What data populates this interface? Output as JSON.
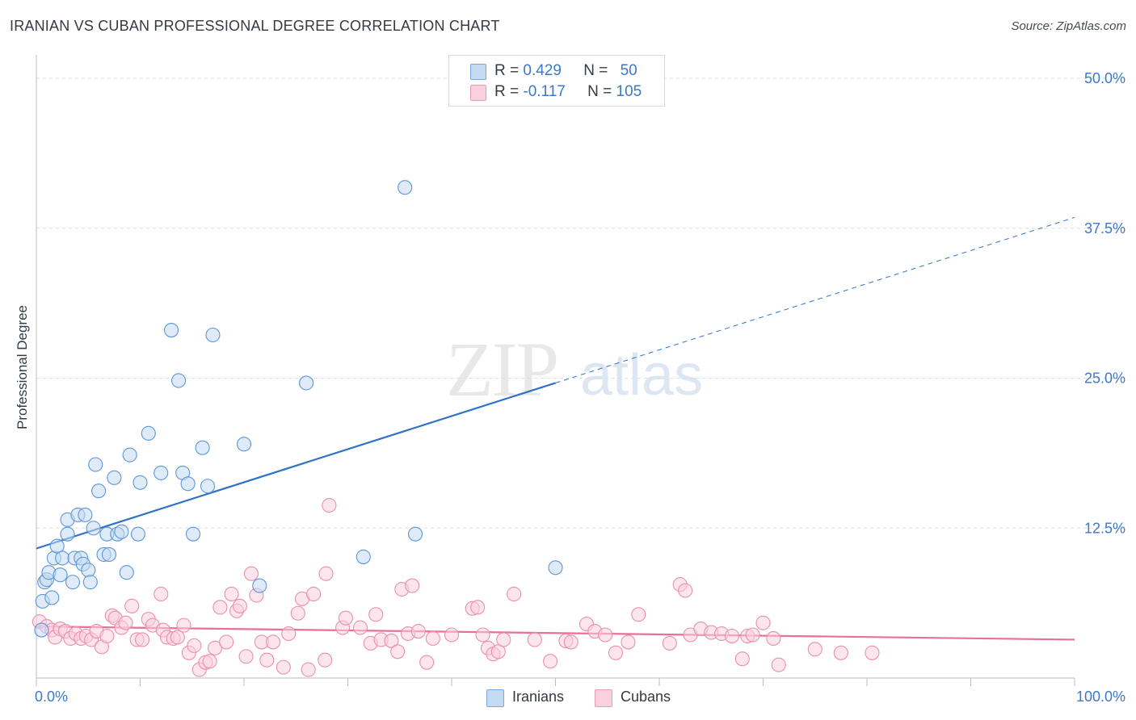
{
  "header": {
    "title": "IRANIAN VS CUBAN PROFESSIONAL DEGREE CORRELATION CHART",
    "source": "Source: ZipAtlas.com"
  },
  "watermark": {
    "zip": "ZIP",
    "atlas": "atlas"
  },
  "legend": {
    "r_label": "R = ",
    "n_label": "N = ",
    "iranians": {
      "name": "Iranians",
      "r": "0.429",
      "n": "50",
      "color": "#5b9bd5"
    },
    "cubans": {
      "name": "Cubans",
      "r": "-0.117",
      "n": "105",
      "color": "#e985a8"
    }
  },
  "chart_data": {
    "type": "scatter",
    "title": "IRANIAN VS CUBAN PROFESSIONAL DEGREE CORRELATION CHART",
    "xlabel": "",
    "ylabel": "Professional Degree",
    "xlim": [
      0,
      100
    ],
    "ylim": [
      0,
      52
    ],
    "x_tick_labels": [
      "0.0%",
      "100.0%"
    ],
    "y_ticks": [
      12.5,
      25.0,
      37.5,
      50.0
    ],
    "y_tick_labels": [
      "12.5%",
      "25.0%",
      "37.5%",
      "50.0%"
    ],
    "grid": true,
    "series": [
      {
        "name": "Iranians",
        "color": "#5b9bd5",
        "trend": {
          "x_start": 0,
          "y_start": 10.8,
          "x_solid_end": 50,
          "x_end": 100,
          "slope": 0.276
        },
        "points": [
          [
            0.5,
            4.0
          ],
          [
            0.6,
            6.4
          ],
          [
            0.8,
            8.0
          ],
          [
            1.0,
            8.2
          ],
          [
            1.2,
            8.8
          ],
          [
            1.5,
            6.7
          ],
          [
            1.7,
            10.0
          ],
          [
            2.0,
            11.0
          ],
          [
            2.3,
            8.6
          ],
          [
            2.5,
            10.0
          ],
          [
            3.0,
            12.0
          ],
          [
            3.0,
            13.2
          ],
          [
            3.5,
            8.0
          ],
          [
            3.7,
            10.0
          ],
          [
            4.0,
            13.6
          ],
          [
            4.3,
            10.0
          ],
          [
            4.5,
            9.5
          ],
          [
            4.7,
            13.6
          ],
          [
            5.0,
            9.0
          ],
          [
            5.2,
            8.0
          ],
          [
            5.5,
            12.5
          ],
          [
            5.7,
            17.8
          ],
          [
            6.0,
            15.6
          ],
          [
            6.5,
            10.3
          ],
          [
            6.8,
            12.0
          ],
          [
            7.0,
            10.3
          ],
          [
            7.5,
            16.7
          ],
          [
            7.8,
            12.0
          ],
          [
            8.2,
            12.2
          ],
          [
            8.7,
            8.8
          ],
          [
            9.0,
            18.6
          ],
          [
            9.8,
            12.0
          ],
          [
            10.0,
            16.3
          ],
          [
            10.8,
            20.4
          ],
          [
            12.0,
            17.1
          ],
          [
            13.0,
            29.0
          ],
          [
            13.7,
            24.8
          ],
          [
            14.1,
            17.1
          ],
          [
            14.6,
            16.2
          ],
          [
            15.1,
            12.0
          ],
          [
            16.0,
            19.2
          ],
          [
            16.5,
            16.0
          ],
          [
            17.0,
            28.6
          ],
          [
            20.0,
            19.5
          ],
          [
            21.5,
            7.7
          ],
          [
            26.0,
            24.6
          ],
          [
            31.5,
            10.1
          ],
          [
            35.5,
            40.9
          ],
          [
            36.5,
            12.0
          ],
          [
            50.0,
            9.2
          ]
        ]
      },
      {
        "name": "Cubans",
        "color": "#e985a8",
        "trend": {
          "x_start": 0,
          "y_start": 4.3,
          "x_end": 100,
          "y_end": 3.2
        },
        "points": [
          [
            0.3,
            4.7
          ],
          [
            1.0,
            4.3
          ],
          [
            1.5,
            4.0
          ],
          [
            1.8,
            3.4
          ],
          [
            2.3,
            4.1
          ],
          [
            2.8,
            3.9
          ],
          [
            3.3,
            3.3
          ],
          [
            3.8,
            3.7
          ],
          [
            4.3,
            3.3
          ],
          [
            4.8,
            3.5
          ],
          [
            5.3,
            3.2
          ],
          [
            5.8,
            3.9
          ],
          [
            6.3,
            2.6
          ],
          [
            6.8,
            3.5
          ],
          [
            7.3,
            5.2
          ],
          [
            7.6,
            5.0
          ],
          [
            8.2,
            4.2
          ],
          [
            8.6,
            4.6
          ],
          [
            9.2,
            6.0
          ],
          [
            9.7,
            3.2
          ],
          [
            10.2,
            3.2
          ],
          [
            10.8,
            4.9
          ],
          [
            11.2,
            4.4
          ],
          [
            12.0,
            7.0
          ],
          [
            12.2,
            4.0
          ],
          [
            12.6,
            3.4
          ],
          [
            13.2,
            3.3
          ],
          [
            13.6,
            3.4
          ],
          [
            14.2,
            4.4
          ],
          [
            14.7,
            2.1
          ],
          [
            15.2,
            2.7
          ],
          [
            15.7,
            0.7
          ],
          [
            16.3,
            1.3
          ],
          [
            16.7,
            1.4
          ],
          [
            17.2,
            2.5
          ],
          [
            17.7,
            5.9
          ],
          [
            18.3,
            3.0
          ],
          [
            18.8,
            7.0
          ],
          [
            19.3,
            5.6
          ],
          [
            19.6,
            6.0
          ],
          [
            20.2,
            1.8
          ],
          [
            20.7,
            8.7
          ],
          [
            21.2,
            6.9
          ],
          [
            21.7,
            3.0
          ],
          [
            22.2,
            1.5
          ],
          [
            22.8,
            3.0
          ],
          [
            23.8,
            0.9
          ],
          [
            24.3,
            3.7
          ],
          [
            25.2,
            5.4
          ],
          [
            25.6,
            6.6
          ],
          [
            26.2,
            0.7
          ],
          [
            26.7,
            7.0
          ],
          [
            27.8,
            1.5
          ],
          [
            27.9,
            8.7
          ],
          [
            28.2,
            14.4
          ],
          [
            29.5,
            4.2
          ],
          [
            29.8,
            5.0
          ],
          [
            31.2,
            4.2
          ],
          [
            32.2,
            2.9
          ],
          [
            32.7,
            5.3
          ],
          [
            33.2,
            3.2
          ],
          [
            34.2,
            3.1
          ],
          [
            34.8,
            2.2
          ],
          [
            35.2,
            7.4
          ],
          [
            35.8,
            3.7
          ],
          [
            36.2,
            7.7
          ],
          [
            36.8,
            3.9
          ],
          [
            37.6,
            1.3
          ],
          [
            38.2,
            3.3
          ],
          [
            40.0,
            3.6
          ],
          [
            42.0,
            5.8
          ],
          [
            42.5,
            5.9
          ],
          [
            43.0,
            3.6
          ],
          [
            43.5,
            2.5
          ],
          [
            44.0,
            2.0
          ],
          [
            44.5,
            2.2
          ],
          [
            45.0,
            3.2
          ],
          [
            46.0,
            7.0
          ],
          [
            48.0,
            3.2
          ],
          [
            49.5,
            1.4
          ],
          [
            51.0,
            3.1
          ],
          [
            51.5,
            3.0
          ],
          [
            53.0,
            4.5
          ],
          [
            53.8,
            3.9
          ],
          [
            54.8,
            3.6
          ],
          [
            55.8,
            2.1
          ],
          [
            57.0,
            3.0
          ],
          [
            58.0,
            5.3
          ],
          [
            61.0,
            2.9
          ],
          [
            62.0,
            7.8
          ],
          [
            62.5,
            7.3
          ],
          [
            63.0,
            3.6
          ],
          [
            64.0,
            4.1
          ],
          [
            65.0,
            3.8
          ],
          [
            66.0,
            3.7
          ],
          [
            67.0,
            3.5
          ],
          [
            68.0,
            1.6
          ],
          [
            68.5,
            3.5
          ],
          [
            69.0,
            3.6
          ],
          [
            70.0,
            4.6
          ],
          [
            71.0,
            3.3
          ],
          [
            71.5,
            1.1
          ],
          [
            75.0,
            2.4
          ],
          [
            77.5,
            2.1
          ],
          [
            80.5,
            2.1
          ]
        ]
      }
    ]
  }
}
